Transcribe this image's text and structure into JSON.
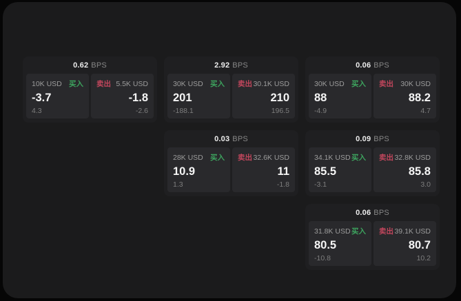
{
  "labels": {
    "bps_unit": "BPS",
    "buy": "买入",
    "sell": "卖出"
  },
  "colors": {
    "surface": "#1b1b1c",
    "card": "#1f1f21",
    "panel": "#29292c",
    "buy": "#3da35e",
    "sell": "#c0465c"
  },
  "cards": [
    {
      "bps": "0.62",
      "row": 1,
      "col": 1,
      "buy": {
        "size": "10K USD",
        "price": "-3.7",
        "delta": "4.3"
      },
      "sell": {
        "size": "5.5K USD",
        "price": "-1.8",
        "delta": "-2.6"
      }
    },
    {
      "bps": "2.92",
      "row": 1,
      "col": 2,
      "buy": {
        "size": "30K USD",
        "price": "201",
        "delta": "-188.1"
      },
      "sell": {
        "size": "30.1K USD",
        "price": "210",
        "delta": "196.5"
      }
    },
    {
      "bps": "0.06",
      "row": 1,
      "col": 3,
      "buy": {
        "size": "30K USD",
        "price": "88",
        "delta": "-4.9"
      },
      "sell": {
        "size": "30K USD",
        "price": "88.2",
        "delta": "4.7"
      }
    },
    {
      "bps": "0.03",
      "row": 2,
      "col": 2,
      "buy": {
        "size": "28K USD",
        "price": "10.9",
        "delta": "1.3"
      },
      "sell": {
        "size": "32.6K USD",
        "price": "11",
        "delta": "-1.8"
      }
    },
    {
      "bps": "0.09",
      "row": 2,
      "col": 3,
      "buy": {
        "size": "34.1K USD",
        "price": "85.5",
        "delta": "-3.1"
      },
      "sell": {
        "size": "32.8K USD",
        "price": "85.8",
        "delta": "3.0"
      }
    },
    {
      "bps": "0.06",
      "row": 3,
      "col": 3,
      "buy": {
        "size": "31.8K USD",
        "price": "80.5",
        "delta": "-10.8"
      },
      "sell": {
        "size": "39.1K USD",
        "price": "80.7",
        "delta": "10.2"
      }
    }
  ]
}
